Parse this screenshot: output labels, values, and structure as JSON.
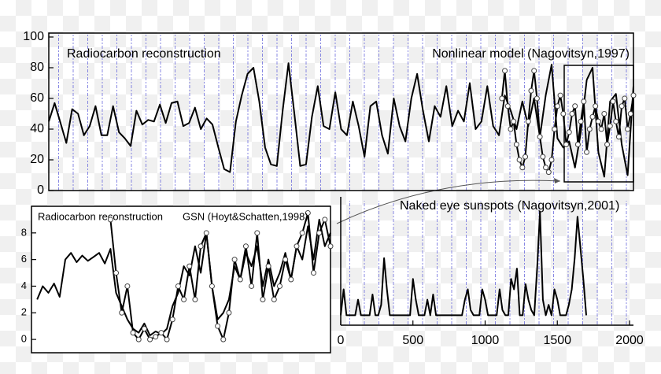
{
  "chart_data": [
    {
      "type": "line",
      "xlim": [
        -2000,
        2000
      ],
      "ylim": [
        0,
        100
      ],
      "yticks": [
        0,
        20,
        40,
        60,
        80,
        100
      ],
      "series": [
        {
          "name": "Radiocarbon reconstruction",
          "color": "#000000",
          "marker": "none",
          "x": [
            -2000,
            -1960,
            -1920,
            -1880,
            -1840,
            -1800,
            -1760,
            -1720,
            -1680,
            -1640,
            -1600,
            -1560,
            -1520,
            -1480,
            -1440,
            -1400,
            -1360,
            -1320,
            -1280,
            -1240,
            -1200,
            -1160,
            -1120,
            -1080,
            -1040,
            -1000,
            -960,
            -920,
            -880,
            -840,
            -800,
            -760,
            -720,
            -680,
            -640,
            -600,
            -560,
            -520,
            -480,
            -440,
            -400,
            -360,
            -320,
            -280,
            -240,
            -200,
            -160,
            -120,
            -80,
            -40,
            0,
            40,
            80,
            120,
            160,
            200,
            240,
            280,
            320,
            360,
            400,
            440,
            480,
            520,
            560,
            600,
            640,
            680,
            720,
            760,
            800,
            840,
            880,
            920,
            960,
            1000,
            1040,
            1080,
            1120,
            1160,
            1200,
            1240,
            1280,
            1320,
            1360,
            1400,
            1440,
            1480,
            1520,
            1560,
            1600,
            1640,
            1680,
            1720,
            1760,
            1800,
            1840,
            1880,
            1920,
            1960,
            2000
          ],
          "values": [
            45,
            57,
            44,
            31,
            53,
            50,
            36,
            42,
            55,
            36,
            36,
            55,
            38,
            34,
            29,
            52,
            43,
            46,
            45,
            56,
            44,
            57,
            58,
            42,
            44,
            54,
            40,
            47,
            43,
            28,
            14,
            12,
            45,
            62,
            76,
            80,
            58,
            28,
            17,
            16,
            52,
            83,
            50,
            16,
            17,
            48,
            68,
            42,
            40,
            64,
            40,
            36,
            58,
            42,
            22,
            55,
            58,
            36,
            24,
            60,
            42,
            32,
            60,
            76,
            52,
            32,
            55,
            48,
            68,
            42,
            52,
            45,
            70,
            40,
            45,
            68,
            42,
            36,
            62,
            52,
            40,
            58,
            42,
            60,
            35,
            62,
            82,
            34,
            28,
            32,
            15,
            38,
            72,
            80,
            25,
            9,
            58,
            63,
            30,
            10,
            68
          ]
        },
        {
          "name": "Nonlinear model (Nagovitsyn,1997)",
          "color": "#000000",
          "marker": "circle",
          "x": [
            1100,
            1120,
            1140,
            1160,
            1180,
            1200,
            1220,
            1240,
            1260,
            1280,
            1300,
            1320,
            1340,
            1360,
            1380,
            1400,
            1420,
            1440,
            1460,
            1480,
            1500,
            1520,
            1540,
            1560,
            1580,
            1600,
            1620,
            1640,
            1660,
            1680,
            1700,
            1720,
            1740,
            1760,
            1780,
            1800,
            1820,
            1840,
            1860,
            1880,
            1900,
            1920,
            1940,
            1960,
            1980,
            2000
          ],
          "values": [
            60,
            78,
            55,
            40,
            45,
            30,
            20,
            15,
            22,
            45,
            65,
            78,
            60,
            35,
            22,
            15,
            12,
            20,
            40,
            55,
            62,
            50,
            30,
            38,
            50,
            55,
            30,
            45,
            58,
            25,
            40,
            48,
            55,
            45,
            40,
            50,
            30,
            42,
            58,
            45,
            35,
            55,
            60,
            40,
            50,
            62
          ]
        }
      ]
    },
    {
      "type": "line",
      "xlim": [
        1470,
        2000
      ],
      "ylim": [
        -1,
        10
      ],
      "yticks": [
        0,
        2,
        4,
        6,
        8
      ],
      "series": [
        {
          "name": "Radiocarbon reconstruction",
          "color": "#000000",
          "marker": "none",
          "x": [
            1480,
            1490,
            1500,
            1510,
            1520,
            1530,
            1540,
            1550,
            1560,
            1570,
            1580,
            1590,
            1600,
            1610,
            1620,
            1630,
            1640,
            1650,
            1660,
            1670,
            1680,
            1690,
            1700,
            1710,
            1720,
            1730,
            1740,
            1750,
            1760,
            1770,
            1780,
            1790,
            1800,
            1810,
            1820,
            1830,
            1840,
            1850,
            1860,
            1870,
            1880,
            1890,
            1900,
            1910,
            1920,
            1930,
            1940,
            1950,
            1960,
            1970,
            1980,
            1990,
            2000
          ],
          "values": [
            3,
            4,
            3.5,
            4.2,
            3.2,
            6,
            6.5,
            5.8,
            6.3,
            5.9,
            6.2,
            6.5,
            5.7,
            6.8,
            3.5,
            2.5,
            1.5,
            0.8,
            0.5,
            1.2,
            0.3,
            0.6,
            0.4,
            0.8,
            2.5,
            3.5,
            5.5,
            4.8,
            7,
            5,
            8,
            4,
            1.5,
            2,
            3,
            5.5,
            4.5,
            6.5,
            5.5,
            7,
            4,
            6,
            4,
            5,
            6.5,
            4.5,
            7,
            6,
            8.5,
            6,
            9,
            7,
            8
          ]
        },
        {
          "name": "GSN (Hoyt&Schatten,1998)",
          "color": "#000000",
          "marker": "circle",
          "x": [
            1610,
            1620,
            1630,
            1640,
            1650,
            1660,
            1670,
            1680,
            1690,
            1700,
            1710,
            1720,
            1730,
            1740,
            1750,
            1760,
            1770,
            1780,
            1790,
            1800,
            1810,
            1820,
            1830,
            1840,
            1850,
            1860,
            1870,
            1880,
            1890,
            1900,
            1910,
            1920,
            1930,
            1940,
            1950,
            1960,
            1970,
            1980,
            1990,
            2000
          ],
          "values": [
            9,
            5,
            2,
            4,
            0.5,
            0,
            0.8,
            0,
            0.2,
            0.5,
            0,
            1.5,
            4,
            3,
            5.5,
            3,
            7,
            8,
            4,
            1,
            0,
            2,
            6,
            4.5,
            7,
            4,
            8,
            3,
            5.5,
            3,
            4,
            6,
            4.5,
            7,
            8,
            9.5,
            5,
            8,
            9,
            7
          ]
        }
      ]
    },
    {
      "type": "line",
      "xlim": [
        0,
        2000
      ],
      "ylim": [
        0,
        11
      ],
      "xticks": [
        0,
        500,
        1000,
        1500,
        2000
      ],
      "series": [
        {
          "name": "Naked eye sunspots (Nagovitsyn,2001)",
          "color": "#000000",
          "marker": "none",
          "x": [
            0,
            20,
            40,
            60,
            80,
            100,
            120,
            140,
            160,
            180,
            200,
            220,
            240,
            260,
            280,
            300,
            320,
            340,
            360,
            380,
            400,
            420,
            440,
            460,
            480,
            500,
            520,
            540,
            560,
            580,
            600,
            620,
            640,
            660,
            680,
            700,
            720,
            740,
            760,
            780,
            800,
            820,
            840,
            860,
            880,
            900,
            920,
            940,
            960,
            980,
            1000,
            1020,
            1040,
            1060,
            1080,
            1100,
            1120,
            1140,
            1160,
            1180,
            1200,
            1220,
            1240,
            1260,
            1280,
            1300,
            1320,
            1340,
            1360,
            1380,
            1400,
            1420,
            1440,
            1460,
            1480,
            1500,
            1520,
            1540,
            1560,
            1580,
            1600,
            1620,
            1640,
            1660,
            1680,
            1700
          ],
          "values": [
            0.5,
            3,
            0.5,
            0.5,
            0.5,
            0.5,
            2,
            0.5,
            0.5,
            0.5,
            0.5,
            2.5,
            0.5,
            0.5,
            1.5,
            6,
            3,
            0.5,
            0.5,
            0.5,
            0.5,
            0.5,
            0.5,
            0.5,
            0.5,
            4,
            2,
            0.5,
            0.5,
            0.5,
            2,
            0.5,
            2.5,
            0.5,
            0.5,
            0.5,
            0.5,
            0.5,
            0.5,
            0.5,
            0.5,
            0.5,
            0.5,
            2,
            3,
            1,
            0.5,
            0.5,
            0.5,
            3,
            2,
            0.5,
            0.5,
            0.5,
            0.5,
            3,
            1,
            0.5,
            0.5,
            4,
            3,
            5,
            0.5,
            0.5,
            3.5,
            2,
            1,
            0.5,
            5,
            10.5,
            2,
            0.5,
            1.5,
            0.5,
            3,
            2,
            0.5,
            0.5,
            0.5,
            1.5,
            3,
            6,
            10,
            7,
            4,
            0.5
          ]
        }
      ]
    }
  ]
}
